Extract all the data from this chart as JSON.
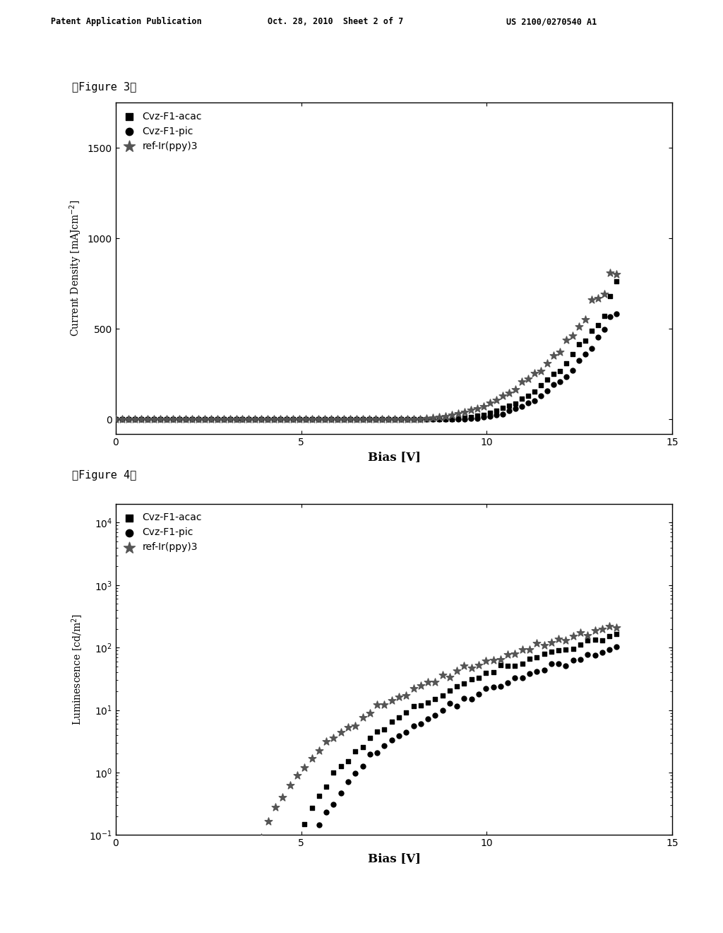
{
  "fig3_title": "【Figure 3】",
  "fig4_title": "【Figure 4】",
  "header_left": "Patent Application Publication",
  "header_center": "Oct. 28, 2010  Sheet 2 of 7",
  "header_right": "US 2100/0270540 A1",
  "xlabel": "Bias [V]",
  "ylabel_fig3": "Current Density [mAJcm$^2$]",
  "ylabel_fig4": "Luminescence [cd/m$^2$]",
  "legend_labels": [
    "Cvz-F1-acac",
    "Cvz-F1-pic",
    "ref-Ir(ppy)3"
  ],
  "fig3_xlim": [
    0,
    15
  ],
  "fig3_ylim": [
    -80,
    1750
  ],
  "fig4_xlim": [
    0,
    15
  ],
  "fig4_ylim_min": 0.1,
  "fig4_ylim_max": 20000.0,
  "background_color": "#ffffff",
  "text_color": "#000000"
}
